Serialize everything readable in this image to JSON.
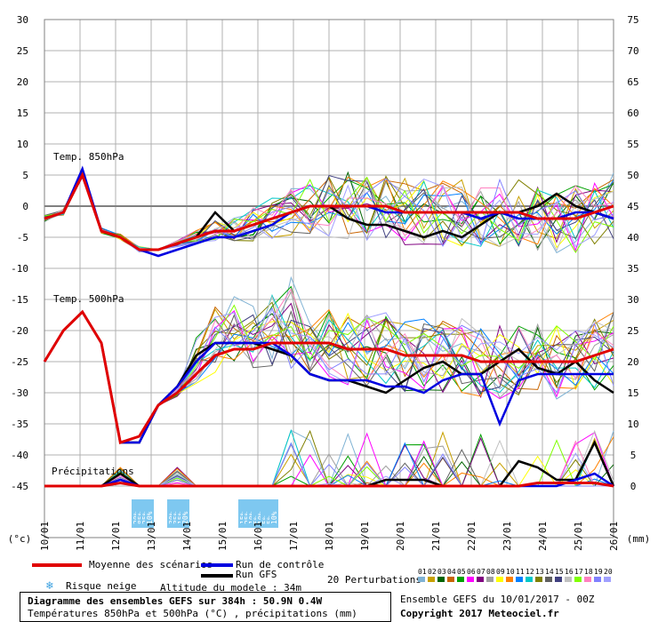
{
  "chart_data": {
    "type": "line",
    "dates": [
      "10/01",
      "11/01",
      "12/01",
      "13/01",
      "14/01",
      "15/01",
      "16/01",
      "17/01",
      "18/01",
      "19/01",
      "20/01",
      "21/01",
      "22/01",
      "23/01",
      "24/01",
      "25/01",
      "26/01"
    ],
    "x_unit": "(°c)",
    "right_unit": "(mm)",
    "left_ticks": [
      "30",
      "25",
      "20",
      "15",
      "10",
      "5",
      "0",
      "-5",
      "-10",
      "-15",
      "-20",
      "-25",
      "-30",
      "-35",
      "-40",
      "-45"
    ],
    "right_ticks": [
      "75",
      "70",
      "65",
      "60",
      "55",
      "50",
      "45",
      "40",
      "35",
      "30",
      "25",
      "20",
      "15",
      "10",
      "5",
      "0"
    ],
    "panel_labels": {
      "t850": "Temp. 850hPa",
      "t500": "Temp. 500hPa",
      "precip": "Précipitations"
    },
    "snow_risk": [
      {
        "date_index": 5.15,
        "pct": "20%"
      },
      {
        "date_index": 5.4,
        "pct": "85%"
      },
      {
        "date_index": 5.65,
        "pct": "25%"
      },
      {
        "date_index": 5.9,
        "pct": "10%"
      },
      {
        "date_index": 7.15,
        "pct": "30%"
      },
      {
        "date_index": 7.4,
        "pct": "35%"
      },
      {
        "date_index": 7.65,
        "pct": "15%"
      },
      {
        "date_index": 7.9,
        "pct": "20%"
      },
      {
        "date_index": 8.15,
        "pct": "15%"
      },
      {
        "date_index": 8.4,
        "pct": "25%"
      },
      {
        "date_index": 8.65,
        "pct": "10%"
      },
      {
        "date_index": 8.9,
        "pct": "5%"
      },
      {
        "date_index": 9.15,
        "pct": "10%"
      },
      {
        "date_index": 9.4,
        "pct": "5%"
      },
      {
        "date_index": 9.65,
        "pct": "5%"
      },
      {
        "date_index": 9.9,
        "pct": "10%"
      }
    ],
    "series": [
      {
        "name": "Moyenne des scénarios",
        "color": "#e00000",
        "t850": [
          -2,
          -1,
          5,
          -4,
          -5,
          -7,
          -7,
          -6,
          -5,
          -4,
          -4,
          -3,
          -2,
          -1,
          0,
          0,
          0,
          0,
          0,
          -1,
          -1,
          -1,
          -1,
          -1,
          -1,
          -1,
          -2,
          -2,
          -2,
          -1,
          0
        ],
        "t500": [
          -25,
          -20,
          -17,
          -22,
          -38,
          -37,
          -32,
          -30,
          -27,
          -24,
          -23,
          -23,
          -22,
          -22,
          -22,
          -22,
          -23,
          -23,
          -23,
          -24,
          -24,
          -24,
          -24,
          -25,
          -25,
          -25,
          -25,
          -25,
          -25,
          -24,
          -23
        ],
        "precip": [
          0,
          0,
          0,
          0,
          0.5,
          0,
          0,
          0,
          0,
          0,
          0,
          0,
          0,
          0,
          0,
          0,
          0,
          0,
          0,
          0,
          0,
          0,
          0,
          0,
          0,
          0,
          0.5,
          0.5,
          0.5,
          0.5,
          0
        ]
      },
      {
        "name": "Run de contrôle",
        "color": "#0000e0",
        "t850": [
          -2,
          -1,
          6,
          -4,
          -5,
          -7,
          -8,
          -7,
          -6,
          -5,
          -5,
          -4,
          -3,
          -1,
          0,
          0,
          0,
          0,
          -1,
          -1,
          -1,
          -1,
          -1,
          -2,
          -1,
          -2,
          -2,
          -2,
          -1,
          -1,
          -2
        ],
        "t500": [
          -25,
          -20,
          -17,
          -22,
          -38,
          -38,
          -32,
          -29,
          -25,
          -22,
          -22,
          -22,
          -22,
          -24,
          -27,
          -28,
          -28,
          -28,
          -29,
          -29,
          -30,
          -28,
          -27,
          -27,
          -35,
          -28,
          -27,
          -27,
          -27,
          -27,
          -27
        ],
        "precip": [
          0,
          0,
          0,
          0,
          1,
          0,
          0,
          0,
          0,
          0,
          0,
          0,
          0,
          0,
          0,
          0,
          0,
          0,
          0,
          0,
          0,
          0,
          0,
          0,
          0,
          0,
          0,
          0,
          1,
          2,
          0
        ]
      },
      {
        "name": "Run GFS",
        "color": "#000000",
        "t850": [
          -2,
          -1,
          5,
          -4,
          -5,
          -7,
          -7,
          -6,
          -5,
          -1,
          -4,
          -3,
          -2,
          -1,
          0,
          0,
          -2,
          -3,
          -3,
          -4,
          -5,
          -4,
          -5,
          -3,
          -1,
          -1,
          0,
          2,
          0,
          -1,
          -2
        ],
        "t500": [
          -25,
          -20,
          -17,
          -22,
          -38,
          -38,
          -32,
          -29,
          -24,
          -22,
          -22,
          -22,
          -23,
          -24,
          -27,
          -28,
          -28,
          -29,
          -30,
          -28,
          -26,
          -25,
          -27,
          -27,
          -25,
          -23,
          -26,
          -27,
          -25,
          -28,
          -30
        ],
        "precip": [
          0,
          0,
          0,
          0,
          2,
          0,
          0,
          0,
          0,
          0,
          0,
          0,
          0,
          0,
          0,
          0,
          0,
          0,
          1,
          1,
          1,
          0,
          0,
          0,
          0,
          4,
          3,
          1,
          1,
          7,
          0
        ]
      }
    ]
  },
  "legend": {
    "mean": "Moyenne des scénarios",
    "control": "Run de contrôle",
    "gfs": "Run GFS",
    "perturbations": "20 Perturbations",
    "snow_risk": "Risque neige",
    "altitude": "Altitude du modele : 34m",
    "perturb_numbers": [
      "01",
      "02",
      "03",
      "04",
      "05",
      "06",
      "07",
      "08",
      "09",
      "10",
      "11",
      "12",
      "13",
      "14",
      "15",
      "16",
      "17",
      "18",
      "19",
      "20"
    ],
    "perturb_colors": [
      "#7fb2d4",
      "#c8a000",
      "#006400",
      "#c86400",
      "#00a000",
      "#ff00ff",
      "#800080",
      "#a0a0a0",
      "#ffff00",
      "#ff8000",
      "#0080ff",
      "#00c8c8",
      "#808000",
      "#606060",
      "#404080",
      "#c0c0c0",
      "#80ff00",
      "#ff80c0",
      "#8080ff",
      "#a0a0ff"
    ]
  },
  "info": {
    "title": "Diagramme des ensembles GEFS sur 384h : 50.9N 0.4W",
    "subtitle": "Températures 850hPa et 500hPa (°C) , précipitations (mm)",
    "ensemble": "Ensemble GEFS du 10/01/2017 - 00Z",
    "copyright": "Copyright 2017 Meteociel.fr"
  }
}
